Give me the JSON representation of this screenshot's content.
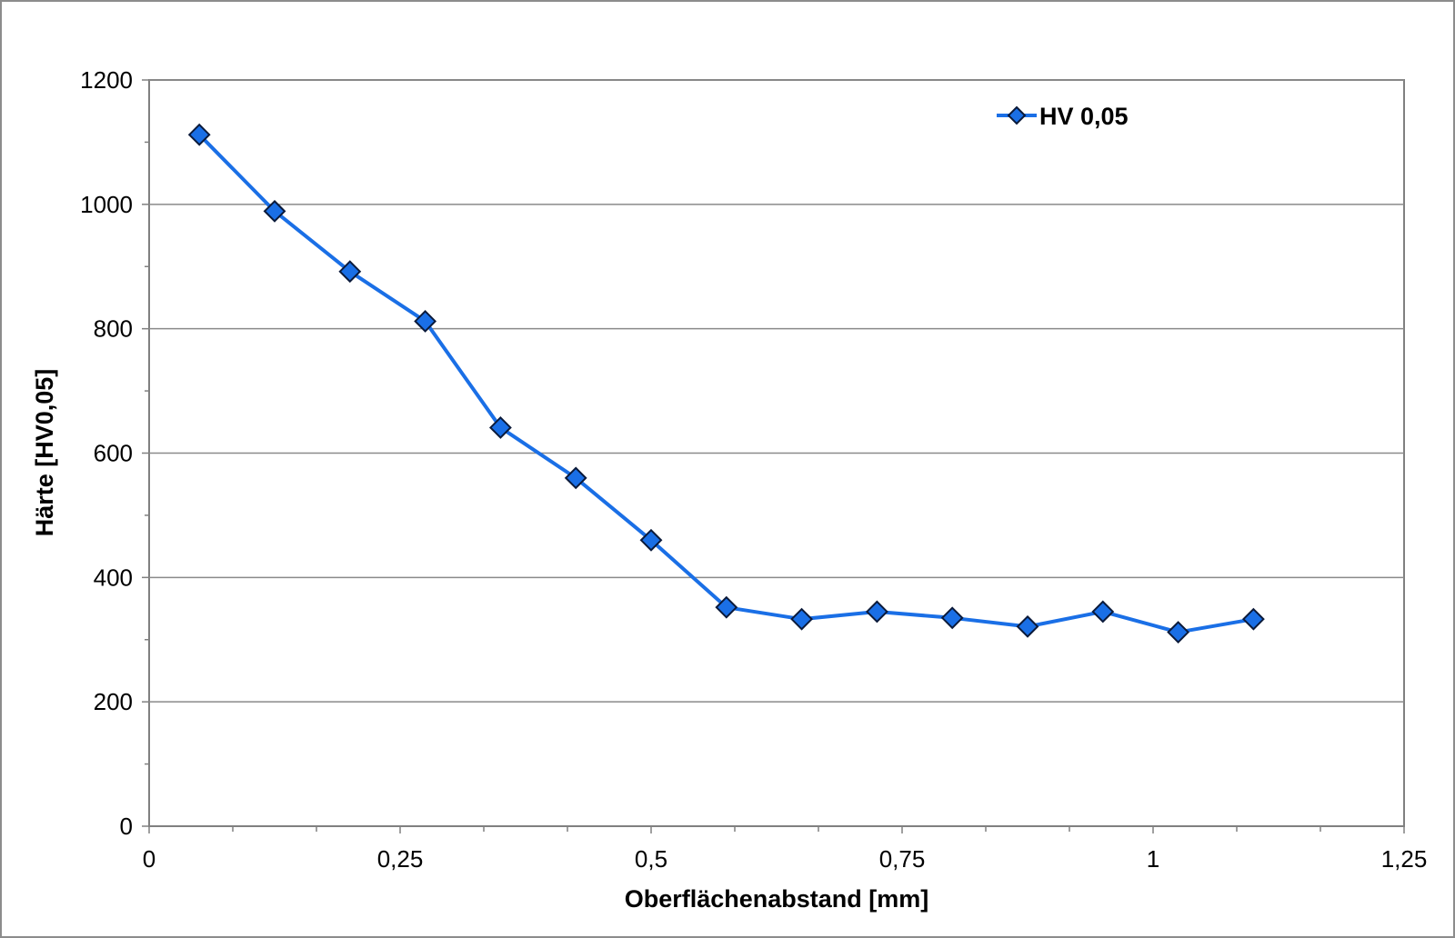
{
  "chart_data": {
    "type": "line",
    "xlabel": "Oberflächenabstand [mm]",
    "ylabel": "Härte [HV0,05]",
    "xlim": [
      0,
      1.25
    ],
    "ylim": [
      0,
      1200
    ],
    "x_ticks": [
      0,
      0.25,
      0.5,
      0.75,
      1,
      1.25
    ],
    "x_tick_labels": [
      "0",
      "0,25",
      "0,5",
      "0,75",
      "1",
      "1,25"
    ],
    "y_ticks": [
      0,
      200,
      400,
      600,
      800,
      1000,
      1200
    ],
    "y_tick_labels": [
      "0",
      "200",
      "400",
      "600",
      "800",
      "1000",
      "1200"
    ],
    "grid": "horizontal major gridlines",
    "legend_position": "top-right",
    "series": [
      {
        "name": "HV 0,05",
        "color": "#1a6fe6",
        "marker": "diamond",
        "x": [
          0.05,
          0.125,
          0.2,
          0.275,
          0.35,
          0.425,
          0.5,
          0.575,
          0.65,
          0.725,
          0.8,
          0.875,
          0.95,
          1.025,
          1.1
        ],
        "y": [
          1112,
          989,
          892,
          812,
          641,
          560,
          460,
          352,
          333,
          345,
          335,
          321,
          345,
          312,
          333
        ]
      }
    ]
  }
}
